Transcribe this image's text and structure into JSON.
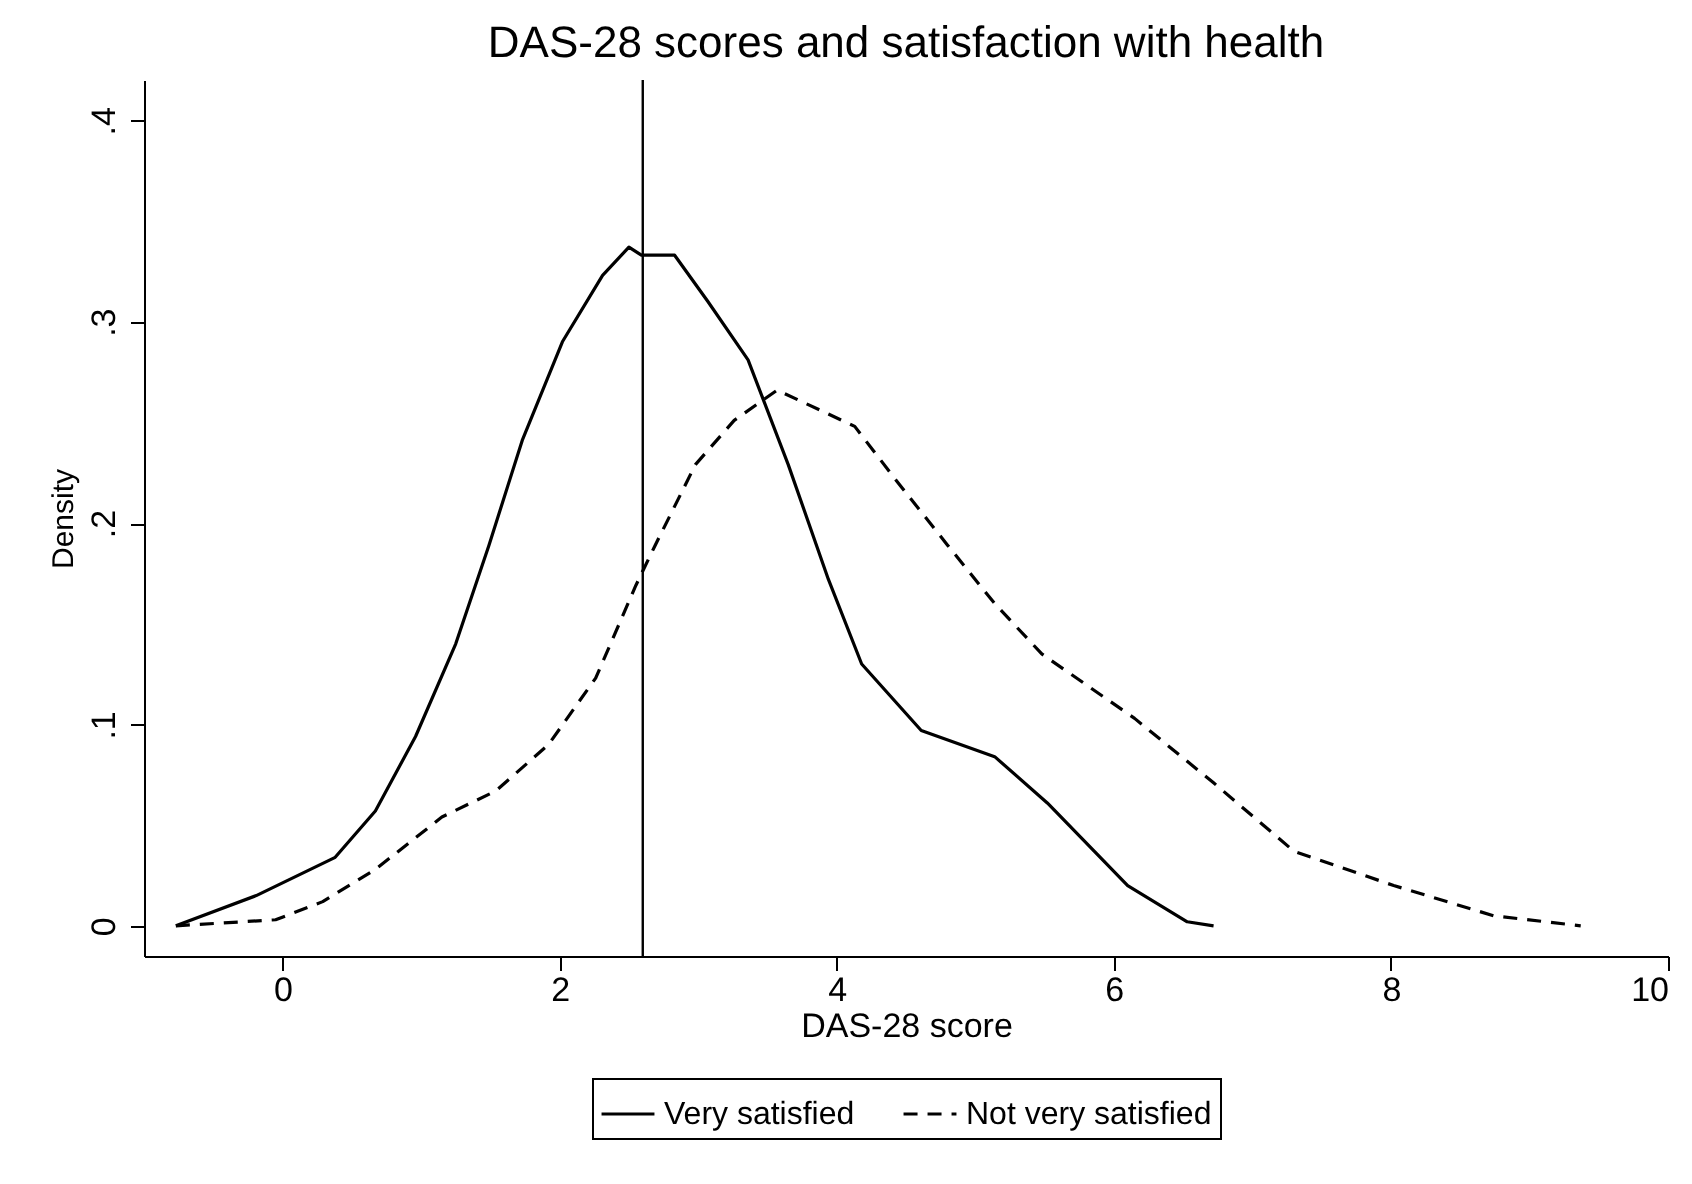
{
  "chart_data": {
    "type": "line",
    "title": "DAS-28 scores and satisfaction with health",
    "xlabel": "DAS-28 score",
    "ylabel": "Density",
    "xlim": [
      -1,
      10
    ],
    "xticks": [
      0,
      2,
      4,
      6,
      8,
      10
    ],
    "ylim": [
      -0.015,
      0.42
    ],
    "yticks": [
      0,
      {
        "value": 0.1,
        "label": ".1"
      },
      {
        "value": 0.2,
        "label": ".2"
      },
      {
        "value": 0.3,
        "label": ".3"
      },
      {
        "value": 0.4,
        "label": ".4"
      }
    ],
    "grid": false,
    "legend": "bottom",
    "marker": "none",
    "ref_lines": [
      {
        "axis": "x",
        "value": 2.6,
        "color": "#000000"
      }
    ],
    "series": [
      {
        "name": "Very satisfied",
        "color": "#000000",
        "line_style": "solid",
        "x": [
          -0.77,
          -0.19,
          0.38,
          0.67,
          0.96,
          1.25,
          1.49,
          1.73,
          2.02,
          2.31,
          2.5,
          2.59,
          2.83,
          3.07,
          3.36,
          3.65,
          3.94,
          4.18,
          4.61,
          5.14,
          5.52,
          5.86,
          6.1,
          6.53,
          6.72
        ],
        "values": [
          0,
          0.015,
          0.034,
          0.057,
          0.094,
          0.14,
          0.189,
          0.241,
          0.29,
          0.323,
          0.337,
          0.333,
          0.333,
          0.31,
          0.281,
          0.229,
          0.172,
          0.13,
          0.097,
          0.084,
          0.061,
          0.037,
          0.02,
          0.002,
          0
        ]
      },
      {
        "name": "Not very satisfied",
        "color": "#000000",
        "line_style": "dashed",
        "x": [
          -0.77,
          -0.05,
          0.29,
          0.67,
          1.15,
          1.54,
          1.92,
          2.26,
          2.55,
          2.69,
          2.98,
          3.26,
          3.57,
          4.13,
          4.42,
          4.8,
          5.14,
          5.48,
          6.15,
          6.72,
          7.3,
          8.02,
          8.74,
          9.37
        ],
        "values": [
          0,
          0.003,
          0.012,
          0.028,
          0.054,
          0.067,
          0.09,
          0.123,
          0.169,
          0.189,
          0.229,
          0.251,
          0.266,
          0.248,
          0.222,
          0.189,
          0.16,
          0.135,
          0.103,
          0.071,
          0.037,
          0.02,
          0.005,
          0
        ]
      }
    ]
  }
}
